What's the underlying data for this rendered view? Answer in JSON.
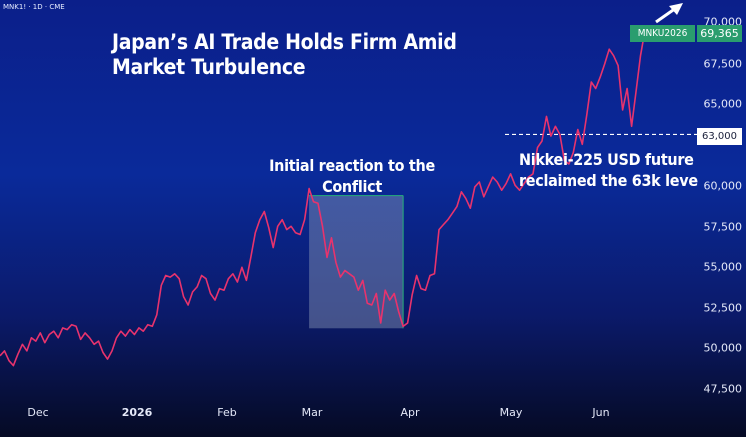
{
  "symbol_label": "MNK1! · 1D · CME",
  "title_lines": [
    "Japan’s AI Trade Holds Firm Amid",
    "Market Turbulence"
  ],
  "annotation_reaction": [
    "Initial reaction to the",
    "Conflict"
  ],
  "annotation_reclaim": [
    "Nikkei-225 USD future",
    "reclaimed the 63k leve"
  ],
  "price_label": {
    "symbol": "MNKU2026",
    "price": "69,365"
  },
  "level_label": "63,000",
  "colors": {
    "line": "#e8336d",
    "badge": "#2a9d6e",
    "box": "#8a9ab8",
    "box_edge": "#27b07a"
  },
  "chart_data": {
    "type": "line",
    "title": "Japan’s AI Trade Holds Firm Amid Market Turbulence",
    "xlabel": "",
    "ylabel": "",
    "yticks": [
      "47,500",
      "50,000",
      "52,500",
      "55,000",
      "57,500",
      "60,000",
      "65,000",
      "67,500",
      "70,000"
    ],
    "ylim": [
      46500,
      71200
    ],
    "xtick_labels": [
      "Dec",
      "2026",
      "Feb",
      "Mar",
      "Apr",
      "May",
      "Jun"
    ],
    "horizontal_level": 63000,
    "last_price": 69365,
    "series": [
      {
        "values": [
          49500,
          49800,
          49200,
          48900,
          49600,
          50200,
          49800,
          50600,
          50400,
          50900,
          50300,
          50800,
          51000,
          50600,
          51200,
          51100,
          51400,
          51300,
          50500,
          50900,
          50600,
          50200,
          50400,
          49700,
          49300,
          49800,
          50600,
          51000,
          50700,
          51100,
          50800,
          51200,
          51000,
          51400,
          51300,
          52000,
          53800,
          54400,
          54300,
          54500,
          54200,
          53100,
          52600,
          53400,
          53700,
          54400,
          54200,
          53300,
          52900,
          53600,
          53500,
          54200,
          54500,
          54000,
          54900,
          54100,
          55500,
          57000,
          57800,
          58300,
          57300,
          56100,
          57400,
          57800,
          57200,
          57400,
          57000,
          56900,
          57800,
          59700,
          58900,
          58800,
          57400,
          55500,
          56700,
          55200,
          54300,
          54700,
          54500,
          54300,
          53500,
          54100,
          52700,
          52600,
          53300,
          51500,
          53500,
          52900,
          53300,
          52200,
          51300,
          51500,
          53200,
          54400,
          53600,
          53500,
          54400,
          54500,
          57200,
          57500,
          57800,
          58200,
          58600,
          59500,
          59100,
          58500,
          59800,
          60100,
          59200,
          59800,
          60400,
          60100,
          59600,
          60000,
          60600,
          59900,
          59600,
          60000,
          60400,
          60600,
          62200,
          62600,
          64100,
          62900,
          63500,
          63000,
          61400,
          61200,
          61900,
          63300,
          62400,
          64200,
          66200,
          65800,
          66500,
          67300,
          68200,
          67800,
          67200,
          64500,
          65800,
          63500,
          65600,
          67800,
          69365
        ]
      }
    ]
  }
}
